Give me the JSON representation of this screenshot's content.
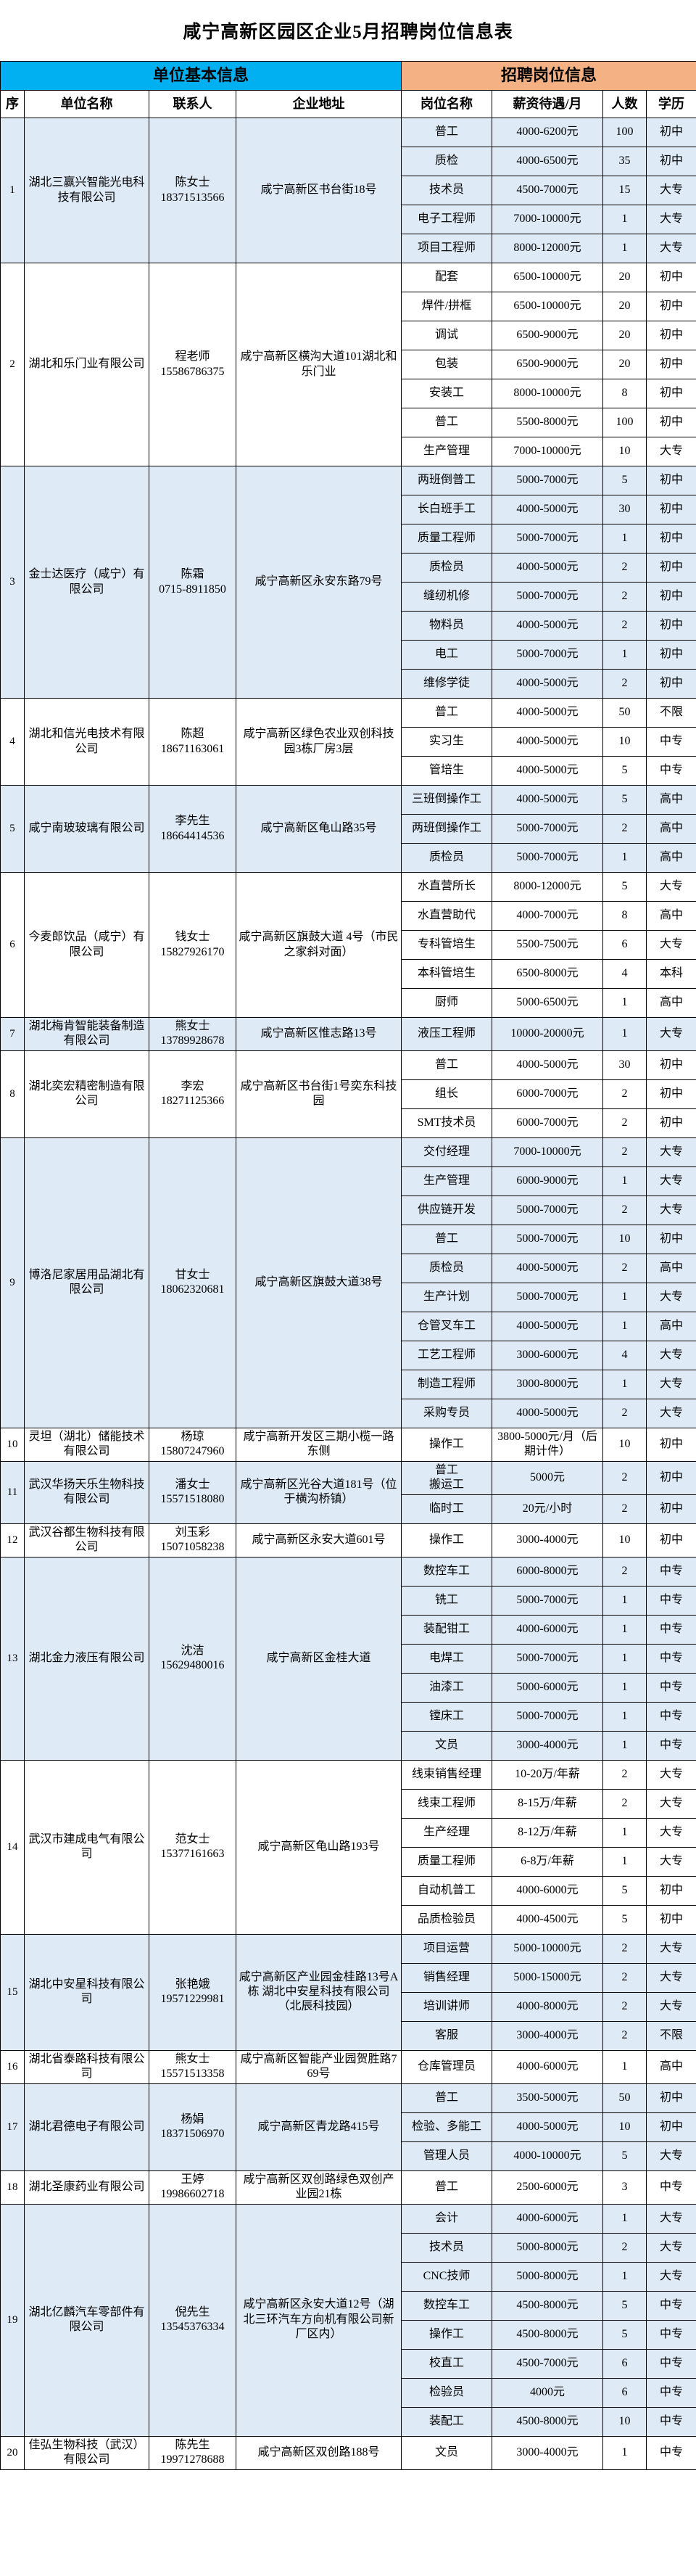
{
  "title": "咸宁高新区园区企业5月招聘岗位信息表",
  "header_groups": {
    "unit": "单位基本信息",
    "jobs": "招聘岗位信息"
  },
  "columns": [
    "序",
    "单位名称",
    "联系人",
    "企业地址",
    "岗位名称",
    "薪资待遇/月",
    "人数",
    "学历"
  ],
  "colors": {
    "unit_header": "#00B0F0",
    "jobs_header": "#F4B183",
    "alt_row": "#DEEAF6",
    "border": "#000000"
  },
  "companies": [
    {
      "no": "1",
      "name": "湖北三赢兴智能光电科技有限公司",
      "person": "陈女士",
      "phone": "18371513566",
      "address": "咸宁高新区书台街18号",
      "positions": [
        [
          "普工",
          "4000-6200元",
          "100",
          "初中"
        ],
        [
          "质检",
          "4000-6500元",
          "35",
          "初中"
        ],
        [
          "技术员",
          "4500-7000元",
          "15",
          "大专"
        ],
        [
          "电子工程师",
          "7000-10000元",
          "1",
          "大专"
        ],
        [
          "项目工程师",
          "8000-12000元",
          "1",
          "大专"
        ]
      ]
    },
    {
      "no": "2",
      "name": "湖北和乐门业有限公司",
      "person": "程老师",
      "phone": "15586786375",
      "address": "咸宁高新区横沟大道101湖北和乐门业",
      "positions": [
        [
          "配套",
          "6500-10000元",
          "20",
          "初中"
        ],
        [
          "焊件/拼框",
          "6500-10000元",
          "20",
          "初中"
        ],
        [
          "调试",
          "6500-9000元",
          "20",
          "初中"
        ],
        [
          "包装",
          "6500-9000元",
          "20",
          "初中"
        ],
        [
          "安装工",
          "8000-10000元",
          "8",
          "初中"
        ],
        [
          "普工",
          "5500-8000元",
          "100",
          "初中"
        ],
        [
          "生产管理",
          "7000-10000元",
          "10",
          "大专"
        ]
      ]
    },
    {
      "no": "3",
      "name": "金士达医疗（咸宁）有限公司",
      "person": "陈霜",
      "phone": "0715-8911850",
      "address": "咸宁高新区永安东路79号",
      "positions": [
        [
          "两班倒普工",
          "5000-7000元",
          "5",
          "初中"
        ],
        [
          "长白班手工",
          "4000-5000元",
          "30",
          "初中"
        ],
        [
          "质量工程师",
          "5000-7000元",
          "1",
          "初中"
        ],
        [
          "质检员",
          "4000-5000元",
          "2",
          "初中"
        ],
        [
          "缝纫机修",
          "5000-7000元",
          "2",
          "初中"
        ],
        [
          "物料员",
          "4000-5000元",
          "2",
          "初中"
        ],
        [
          "电工",
          "5000-7000元",
          "1",
          "初中"
        ],
        [
          "维修学徒",
          "4000-5000元",
          "2",
          "初中"
        ]
      ]
    },
    {
      "no": "4",
      "name": "湖北和信光电技术有限公司",
      "person": "陈超",
      "phone": "18671163061",
      "address": "咸宁高新区绿色农业双创科技园3栋厂房3层",
      "positions": [
        [
          "普工",
          "4000-5000元",
          "50",
          "不限"
        ],
        [
          "实习生",
          "4000-5000元",
          "10",
          "中专"
        ],
        [
          "管培生",
          "4000-5000元",
          "5",
          "中专"
        ]
      ]
    },
    {
      "no": "5",
      "name": "咸宁南玻玻璃有限公司",
      "person": "李先生",
      "phone": "18664414536",
      "address": "咸宁高新区龟山路35号",
      "positions": [
        [
          "三班倒操作工",
          "4000-5000元",
          "5",
          "高中"
        ],
        [
          "两班倒操作工",
          "5000-7000元",
          "2",
          "高中"
        ],
        [
          "质检员",
          "5000-7000元",
          "1",
          "高中"
        ]
      ]
    },
    {
      "no": "6",
      "name": "今麦郎饮品（咸宁）有限公司",
      "person": "钱女士",
      "phone": "15827926170",
      "address": "咸宁高新区旗鼓大道 4号（市民之家斜对面）",
      "positions": [
        [
          "水直营所长",
          "8000-12000元",
          "5",
          "大专"
        ],
        [
          "水直营助代",
          "4000-7000元",
          "8",
          "高中"
        ],
        [
          "专科管培生",
          "5500-7500元",
          "6",
          "大专"
        ],
        [
          "本科管培生",
          "6500-8000元",
          "4",
          "本科"
        ],
        [
          "厨师",
          "5000-6500元",
          "1",
          "高中"
        ]
      ]
    },
    {
      "no": "7",
      "name": "湖北梅肯智能装备制造有限公司",
      "person": "熊女士",
      "phone": "13789928678",
      "address": "咸宁高新区惟志路13号",
      "positions": [
        [
          "液压工程师",
          "10000-20000元",
          "1",
          "大专"
        ]
      ]
    },
    {
      "no": "8",
      "name": "湖北奕宏精密制造有限公司",
      "person": "李宏",
      "phone": "18271125366",
      "address": "咸宁高新区书台街1号奕东科技园",
      "positions": [
        [
          "普工",
          "4000-5000元",
          "30",
          "初中"
        ],
        [
          "组长",
          "6000-7000元",
          "2",
          "初中"
        ],
        [
          "SMT技术员",
          "6000-7000元",
          "2",
          "初中"
        ]
      ]
    },
    {
      "no": "9",
      "name": "博洛尼家居用品湖北有限公司",
      "person": "甘女士",
      "phone": "18062320681",
      "address": "咸宁高新区旗鼓大道38号",
      "positions": [
        [
          "交付经理",
          "7000-10000元",
          "2",
          "大专"
        ],
        [
          "生产管理",
          "6000-9000元",
          "1",
          "大专"
        ],
        [
          "供应链开发",
          "5000-7000元",
          "2",
          "大专"
        ],
        [
          "普工",
          "5000-7000元",
          "10",
          "初中"
        ],
        [
          "质检员",
          "4000-5000元",
          "2",
          "高中"
        ],
        [
          "生产计划",
          "5000-7000元",
          "1",
          "大专"
        ],
        [
          "仓管叉车工",
          "4000-5000元",
          "1",
          "高中"
        ],
        [
          "工艺工程师",
          "3000-6000元",
          "4",
          "大专"
        ],
        [
          "制造工程师",
          "3000-8000元",
          "1",
          "大专"
        ],
        [
          "采购专员",
          "4000-5000元",
          "2",
          "大专"
        ]
      ]
    },
    {
      "no": "10",
      "name": "灵坦（湖北）储能技术有限公司",
      "person": "杨琼",
      "phone": "15807247960",
      "address": "咸宁高新开发区三期小榄一路东侧",
      "positions": [
        [
          "操作工",
          "3800-5000元/月（后期计件）",
          "10",
          "初中"
        ]
      ]
    },
    {
      "no": "11",
      "name": "武汉华扬天乐生物科技有限公司",
      "person": "潘女士",
      "phone": "15571518080",
      "address": "咸宁高新区光谷大道181号（位于横沟桥镇）",
      "positions": [
        [
          "普工\n搬运工",
          "5000元",
          "2",
          "初中"
        ],
        [
          "临时工",
          "20元/小时",
          "2",
          "初中"
        ]
      ]
    },
    {
      "no": "12",
      "name": "武汉谷都生物科技有限公司",
      "person": "刘玉彩",
      "phone": "15071058238",
      "address": "咸宁高新区永安大道601号",
      "positions": [
        [
          "操作工",
          "3000-4000元",
          "10",
          "初中"
        ]
      ]
    },
    {
      "no": "13",
      "name": "湖北金力液压有限公司",
      "person": "沈洁",
      "phone": "15629480016",
      "address": "咸宁高新区金桂大道",
      "positions": [
        [
          "数控车工",
          "6000-8000元",
          "2",
          "中专"
        ],
        [
          "铣工",
          "5000-7000元",
          "1",
          "中专"
        ],
        [
          "装配钳工",
          "4000-6000元",
          "1",
          "中专"
        ],
        [
          "电焊工",
          "5000-7000元",
          "1",
          "中专"
        ],
        [
          "油漆工",
          "5000-6000元",
          "1",
          "中专"
        ],
        [
          "镗床工",
          "5000-7000元",
          "1",
          "中专"
        ],
        [
          "文员",
          "3000-4000元",
          "1",
          "中专"
        ]
      ]
    },
    {
      "no": "14",
      "name": "武汉市建成电气有限公司",
      "person": "范女士",
      "phone": "15377161663",
      "address": "咸宁高新区龟山路193号",
      "positions": [
        [
          "线束销售经理",
          "10-20万/年薪",
          "2",
          "大专"
        ],
        [
          "线束工程师",
          "8-15万/年薪",
          "2",
          "大专"
        ],
        [
          "生产经理",
          "8-12万/年薪",
          "1",
          "大专"
        ],
        [
          "质量工程师",
          "6-8万/年薪",
          "1",
          "大专"
        ],
        [
          "自动机普工",
          "4000-6000元",
          "5",
          "初中"
        ],
        [
          "品质检验员",
          "4000-4500元",
          "5",
          "初中"
        ]
      ]
    },
    {
      "no": "15",
      "name": "湖北中安星科技有限公司",
      "person": "张艳娥",
      "phone": "19571229981",
      "address": "咸宁高新区产业园金桂路13号A栋  湖北中安星科技有限公司（北辰科技园）",
      "positions": [
        [
          "项目运营",
          "5000-10000元",
          "2",
          "大专"
        ],
        [
          "销售经理",
          "5000-15000元",
          "2",
          "大专"
        ],
        [
          "培训讲师",
          "4000-8000元",
          "2",
          "大专"
        ],
        [
          "客服",
          "3000-4000元",
          "2",
          "不限"
        ]
      ]
    },
    {
      "no": "16",
      "name": "湖北省泰路科技有限公司",
      "person": "熊女士",
      "phone": "15571513358",
      "address": "咸宁高新区智能产业园贺胜路769号",
      "positions": [
        [
          "仓库管理员",
          "4000-6000元",
          "1",
          "高中"
        ]
      ]
    },
    {
      "no": "17",
      "name": "湖北君德电子有限公司",
      "person": "杨娟",
      "phone": "18371506970",
      "address": "咸宁高新区青龙路415号",
      "positions": [
        [
          "普工",
          "3500-5000元",
          "50",
          "初中"
        ],
        [
          "检验、多能工",
          "4000-5000元",
          "10",
          "初中"
        ],
        [
          "管理人员",
          "4000-10000元",
          "5",
          "大专"
        ]
      ]
    },
    {
      "no": "18",
      "name": "湖北圣康药业有限公司",
      "person": "王婷",
      "phone": "19986602718",
      "address": "咸宁高新区双创路绿色双创产业园21栋",
      "positions": [
        [
          "普工",
          "2500-6000元",
          "3",
          "中专"
        ]
      ]
    },
    {
      "no": "19",
      "name": "湖北亿麟汽车零部件有限公司",
      "person": "倪先生",
      "phone": "13545376334",
      "address": "咸宁高新区永安大道12号（湖北三环汽车方向机有限公司新厂区内）",
      "positions": [
        [
          "会计",
          "4000-6000元",
          "1",
          "大专"
        ],
        [
          "技术员",
          "5000-8000元",
          "2",
          "大专"
        ],
        [
          "CNC技师",
          "5000-8000元",
          "1",
          "大专"
        ],
        [
          "数控车工",
          "4500-8000元",
          "5",
          "中专"
        ],
        [
          "操作工",
          "4500-8000元",
          "5",
          "中专"
        ],
        [
          "校直工",
          "4500-7000元",
          "6",
          "中专"
        ],
        [
          "检验员",
          "4000元",
          "6",
          "中专"
        ],
        [
          "装配工",
          "4500-8000元",
          "10",
          "中专"
        ]
      ]
    },
    {
      "no": "20",
      "name": "佳弘生物科技（武汉）有限公司",
      "person": "陈先生",
      "phone": "19971278688",
      "address": "咸宁高新区双创路188号",
      "positions": [
        [
          "文员",
          "3000-4000元",
          "1",
          "中专"
        ]
      ]
    }
  ]
}
